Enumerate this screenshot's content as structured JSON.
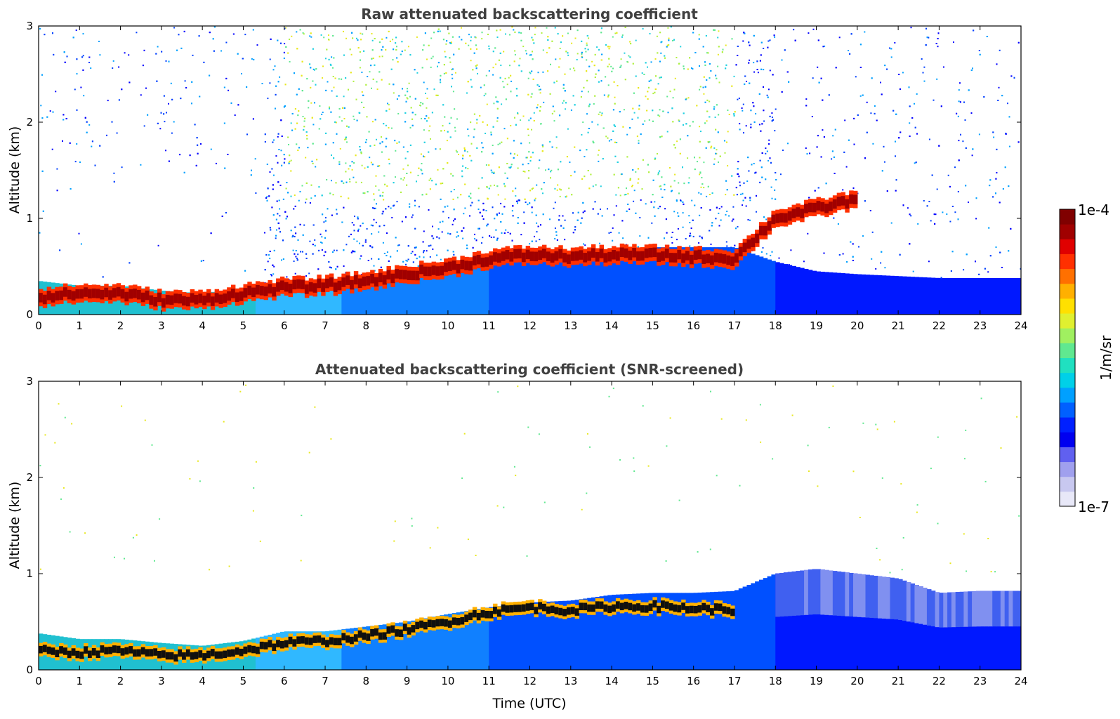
{
  "chart_data": [
    {
      "type": "heatmap",
      "title": "Raw attenuated backscattering coefficient",
      "xlabel": "",
      "ylabel": "Altitude (km)",
      "xlim": [
        0,
        24
      ],
      "ylim": [
        0,
        3
      ],
      "xticks": [
        "0",
        "1",
        "2",
        "3",
        "4",
        "5",
        "6",
        "7",
        "8",
        "9",
        "10",
        "11",
        "12",
        "13",
        "14",
        "15",
        "16",
        "17",
        "18",
        "19",
        "20",
        "21",
        "22",
        "23",
        "24"
      ],
      "yticks": [
        "0",
        "1",
        "2",
        "3"
      ],
      "noise": "high",
      "layer_top_km": [
        [
          0,
          0.35
        ],
        [
          1,
          0.3
        ],
        [
          2,
          0.3
        ],
        [
          3,
          0.25
        ],
        [
          4,
          0.22
        ],
        [
          5,
          0.28
        ],
        [
          6,
          0.32
        ],
        [
          7,
          0.35
        ],
        [
          8,
          0.42
        ],
        [
          9,
          0.45
        ],
        [
          10,
          0.52
        ],
        [
          11,
          0.58
        ],
        [
          12,
          0.62
        ],
        [
          13,
          0.65
        ],
        [
          14,
          0.68
        ],
        [
          15,
          0.7
        ],
        [
          16,
          0.7
        ],
        [
          17,
          0.7
        ],
        [
          18,
          0.55
        ],
        [
          19,
          0.45
        ],
        [
          20,
          0.42
        ],
        [
          21,
          0.4
        ],
        [
          22,
          0.38
        ],
        [
          23,
          0.38
        ],
        [
          24,
          0.38
        ]
      ],
      "aerosol_layer_km": [
        [
          0,
          0.18
        ],
        [
          1,
          0.22
        ],
        [
          2,
          0.22
        ],
        [
          3,
          0.15
        ],
        [
          4,
          0.15
        ],
        [
          5,
          0.22
        ],
        [
          6,
          0.28
        ],
        [
          7,
          0.3
        ],
        [
          8,
          0.35
        ],
        [
          9,
          0.42
        ],
        [
          10,
          0.48
        ],
        [
          11,
          0.58
        ],
        [
          12,
          0.62
        ],
        [
          13,
          0.6
        ],
        [
          14,
          0.62
        ],
        [
          15,
          0.62
        ],
        [
          16,
          0.6
        ],
        [
          17,
          0.58
        ],
        [
          18,
          1.0
        ],
        [
          19,
          1.1
        ],
        [
          20,
          1.2
        ]
      ]
    },
    {
      "type": "heatmap",
      "title": "Attenuated backscattering coefficient (SNR-screened)",
      "xlabel": "Time (UTC)",
      "ylabel": "Altitude (km)",
      "xlim": [
        0,
        24
      ],
      "ylim": [
        0,
        3
      ],
      "xticks": [
        "0",
        "1",
        "2",
        "3",
        "4",
        "5",
        "6",
        "7",
        "8",
        "9",
        "10",
        "11",
        "12",
        "13",
        "14",
        "15",
        "16",
        "17",
        "18",
        "19",
        "20",
        "21",
        "22",
        "23",
        "24"
      ],
      "yticks": [
        "0",
        "1",
        "2",
        "3"
      ],
      "noise": "screened",
      "layer_top_km": [
        [
          0,
          0.38
        ],
        [
          1,
          0.32
        ],
        [
          2,
          0.32
        ],
        [
          3,
          0.28
        ],
        [
          4,
          0.25
        ],
        [
          5,
          0.3
        ],
        [
          6,
          0.4
        ],
        [
          7,
          0.4
        ],
        [
          8,
          0.45
        ],
        [
          9,
          0.5
        ],
        [
          10,
          0.58
        ],
        [
          11,
          0.65
        ],
        [
          12,
          0.7
        ],
        [
          13,
          0.72
        ],
        [
          14,
          0.78
        ],
        [
          15,
          0.8
        ],
        [
          16,
          0.8
        ],
        [
          17,
          0.82
        ],
        [
          18,
          1.0
        ],
        [
          19,
          1.05
        ],
        [
          20,
          1.0
        ],
        [
          21,
          0.95
        ],
        [
          22,
          0.8
        ],
        [
          23,
          0.82
        ],
        [
          24,
          0.82
        ]
      ],
      "aerosol_layer_km": [
        [
          0,
          0.2
        ],
        [
          1,
          0.18
        ],
        [
          2,
          0.2
        ],
        [
          3,
          0.15
        ],
        [
          4,
          0.15
        ],
        [
          5,
          0.2
        ],
        [
          6,
          0.28
        ],
        [
          7,
          0.3
        ],
        [
          8,
          0.35
        ],
        [
          9,
          0.42
        ],
        [
          10,
          0.5
        ],
        [
          11,
          0.6
        ],
        [
          12,
          0.65
        ],
        [
          13,
          0.62
        ],
        [
          14,
          0.66
        ],
        [
          15,
          0.66
        ],
        [
          16,
          0.64
        ],
        [
          17,
          0.62
        ]
      ]
    }
  ],
  "colorbar": {
    "max_label": "1e-4",
    "min_label": "1e-7",
    "unit_label": "1/m/sr",
    "colors": [
      "#e8e8f8",
      "#c8c8f0",
      "#a0a0ee",
      "#6060f0",
      "#0000f0",
      "#0020ff",
      "#0060ff",
      "#00a0ff",
      "#00d0e8",
      "#20e0c0",
      "#60e890",
      "#a0f060",
      "#e0f030",
      "#ffe000",
      "#ffb000",
      "#ff7000",
      "#ff3000",
      "#e00000",
      "#a00000",
      "#800000"
    ]
  }
}
